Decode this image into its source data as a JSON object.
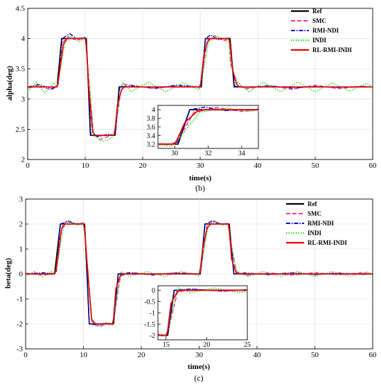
{
  "chart_data": [
    {
      "type": "line",
      "caption": "(b)",
      "xlabel": "time(s)",
      "ylabel": "alpha(deg)",
      "xlim": [
        0,
        60
      ],
      "ylim": [
        2,
        4.5
      ],
      "xticks": [
        "0",
        "10",
        "20",
        "30",
        "40",
        "50",
        "60"
      ],
      "yticks": [
        "2",
        "2.5",
        "3",
        "3.5",
        "4",
        "4.5"
      ],
      "grid": true,
      "legend_position": "top-right",
      "series": [
        {
          "name": "Ref",
          "color": "#000000",
          "dash": "solid",
          "x": [
            0,
            5.1,
            5.9,
            10.0,
            10.2,
            10.9,
            15.0,
            15.2,
            15.9,
            30.0,
            30.2,
            30.9,
            35.0,
            35.2,
            35.9,
            60
          ],
          "y": [
            3.2,
            3.2,
            4.0,
            4.0,
            4.0,
            2.4,
            2.4,
            2.4,
            3.2,
            3.2,
            3.2,
            4.0,
            4.0,
            4.0,
            3.2,
            3.2
          ]
        },
        {
          "name": "SMC",
          "color": "#ff3399",
          "dash": "dashed",
          "x": [
            0,
            2,
            4,
            5.0,
            5.3,
            6.2,
            7,
            8.5,
            10.0,
            10.3,
            11.4,
            12.5,
            14,
            15.0,
            15.3,
            16.4,
            18,
            22,
            26,
            29.8,
            30.2,
            31.2,
            32.5,
            34,
            35.0,
            35.3,
            36.4,
            38,
            42,
            46,
            50,
            54,
            58,
            60
          ],
          "y": [
            3.18,
            3.22,
            3.15,
            3.2,
            3.3,
            3.95,
            4.03,
            3.97,
            4.02,
            3.7,
            2.45,
            2.33,
            2.38,
            2.41,
            2.55,
            3.25,
            3.23,
            3.17,
            3.22,
            3.19,
            3.3,
            3.97,
            4.05,
            3.96,
            4.0,
            3.6,
            3.24,
            3.17,
            3.22,
            3.16,
            3.23,
            3.17,
            3.21,
            3.2
          ]
        },
        {
          "name": "RMI-NDI",
          "color": "#0000dd",
          "dash": "dashdot",
          "x": [
            0,
            2,
            4,
            5.0,
            5.3,
            6.0,
            7.3,
            8.5,
            10.0,
            10.3,
            11.0,
            12.5,
            14,
            15.0,
            15.3,
            16.0,
            18,
            22,
            26,
            29.8,
            30.2,
            30.9,
            31.8,
            33,
            35.0,
            35.3,
            36.0,
            38,
            42,
            46,
            50,
            54,
            58,
            60
          ],
          "y": [
            3.2,
            3.24,
            3.17,
            3.2,
            3.25,
            4.0,
            4.08,
            4.0,
            4.02,
            3.8,
            2.4,
            2.38,
            2.42,
            2.4,
            2.48,
            3.2,
            3.22,
            3.18,
            3.23,
            3.2,
            3.25,
            4.0,
            4.06,
            3.98,
            4.01,
            3.8,
            3.21,
            3.19,
            3.22,
            3.18,
            3.21,
            3.19,
            3.21,
            3.2
          ]
        },
        {
          "name": "INDI",
          "color": "#22dd22",
          "dash": "dotted",
          "x": [
            0,
            1.5,
            3,
            4.5,
            5.0,
            5.3,
            6.5,
            7.5,
            9,
            10.0,
            10.3,
            11.5,
            13,
            14.5,
            15.0,
            15.3,
            16.5,
            18,
            21,
            24,
            27,
            29.8,
            30.2,
            31.5,
            33,
            34.5,
            35.0,
            35.3,
            36.5,
            38.5,
            41,
            44,
            47,
            50,
            53,
            56,
            59,
            60
          ],
          "y": [
            3.12,
            3.28,
            3.1,
            3.27,
            3.2,
            3.28,
            3.93,
            4.04,
            3.95,
            4.02,
            3.7,
            2.4,
            2.3,
            2.35,
            2.4,
            2.6,
            3.28,
            3.12,
            3.28,
            3.12,
            3.27,
            3.15,
            3.3,
            3.94,
            4.04,
            3.96,
            4.0,
            3.55,
            3.28,
            3.12,
            3.28,
            3.12,
            3.28,
            3.12,
            3.27,
            3.13,
            3.26,
            3.2
          ]
        },
        {
          "name": "RL-RMI-INDI",
          "color": "#ee0000",
          "dash": "solid",
          "x": [
            0,
            5.1,
            5.4,
            6.2,
            6.8,
            10.0,
            10.2,
            10.6,
            11.3,
            11.8,
            15.0,
            15.2,
            15.6,
            16.3,
            16.8,
            30.0,
            30.2,
            30.6,
            31.3,
            31.8,
            35.0,
            35.2,
            35.6,
            36.3,
            36.8,
            60
          ],
          "y": [
            3.2,
            3.2,
            3.35,
            3.9,
            4.0,
            4.0,
            3.9,
            3.2,
            2.45,
            2.4,
            2.4,
            2.5,
            2.9,
            3.15,
            3.2,
            3.2,
            3.35,
            3.7,
            3.95,
            4.0,
            4.0,
            3.9,
            3.5,
            3.25,
            3.2,
            3.2
          ]
        }
      ],
      "inset": {
        "xlim": [
          29,
          35
        ],
        "ylim": [
          3.1,
          4.1
        ],
        "xticks": [
          "30",
          "32",
          "34"
        ],
        "yticks": [
          "3.2",
          "3.4",
          "3.6",
          "3.8",
          "4"
        ]
      }
    },
    {
      "type": "line",
      "caption": "(c)",
      "xlabel": "time(s)",
      "ylabel": "beta(deg)",
      "xlim": [
        0,
        60
      ],
      "ylim": [
        -3,
        3
      ],
      "xticks": [
        "0",
        "10",
        "20",
        "30",
        "40",
        "50",
        "60"
      ],
      "yticks": [
        "-3",
        "-2",
        "-1",
        "0",
        "1",
        "2",
        "3"
      ],
      "grid": true,
      "legend_position": "top-right",
      "series": [
        {
          "name": "Ref",
          "color": "#000000",
          "dash": "solid",
          "x": [
            0,
            5.0,
            6.0,
            10.0,
            10.2,
            11.0,
            15.0,
            15.2,
            16.0,
            30.0,
            30.2,
            31.0,
            35.0,
            35.2,
            36.0,
            60
          ],
          "y": [
            0,
            0,
            2.0,
            2.0,
            2.0,
            -2.0,
            -2.0,
            -2.0,
            0,
            0,
            0,
            2.0,
            2.0,
            2.0,
            0,
            0
          ]
        },
        {
          "name": "SMC",
          "color": "#ff3399",
          "dash": "dashed",
          "x": [
            0,
            3,
            5.0,
            5.3,
            6.3,
            7.2,
            8.5,
            10.0,
            10.3,
            11.4,
            12.5,
            14,
            15.0,
            15.3,
            16.4,
            18,
            22,
            26,
            30.0,
            30.3,
            31.3,
            32.2,
            34,
            35.0,
            35.3,
            36.4,
            38,
            42,
            46,
            50,
            54,
            58,
            60
          ],
          "y": [
            0.03,
            -0.05,
            0,
            0.1,
            1.9,
            2.15,
            2.0,
            2.05,
            1.5,
            -1.9,
            -2.1,
            -2.0,
            -2.05,
            -1.7,
            -0.1,
            0.06,
            -0.05,
            0.05,
            0,
            0.15,
            1.9,
            2.15,
            1.98,
            2.0,
            1.5,
            0.1,
            -0.06,
            0.05,
            -0.05,
            0.06,
            -0.04,
            0.05,
            0
          ]
        },
        {
          "name": "RMI-NDI",
          "color": "#0000dd",
          "dash": "dashdot",
          "x": [
            0,
            3,
            5.0,
            5.3,
            6.0,
            7.3,
            9,
            10.0,
            10.3,
            11.0,
            12.5,
            14,
            15.0,
            15.3,
            16.0,
            18,
            22,
            26,
            30.0,
            30.3,
            31.0,
            32.2,
            34,
            35.0,
            35.3,
            36.0,
            38,
            42,
            46,
            50,
            54,
            58,
            60
          ],
          "y": [
            0,
            0.05,
            0,
            0.08,
            2.0,
            2.1,
            2.0,
            2.02,
            1.7,
            -2.0,
            -2.05,
            -1.95,
            -2.02,
            -1.8,
            0,
            0.05,
            -0.03,
            0.04,
            0,
            0.08,
            2.0,
            2.1,
            2.0,
            2.02,
            1.7,
            0,
            0.04,
            -0.03,
            0.05,
            -0.03,
            0.04,
            -0.02,
            0
          ]
        },
        {
          "name": "INDI",
          "color": "#22dd22",
          "dash": "dotted",
          "x": [
            0,
            1.5,
            3,
            4.5,
            5.0,
            5.3,
            6.5,
            7.5,
            9,
            10.0,
            10.3,
            11.5,
            13,
            14.5,
            15.0,
            15.3,
            16.5,
            18,
            21,
            24,
            27,
            30.0,
            30.3,
            31.5,
            32.5,
            34,
            35.0,
            35.3,
            36.5,
            38.5,
            41,
            44,
            47,
            50,
            53,
            56,
            59,
            60
          ],
          "y": [
            -0.1,
            0.1,
            -0.1,
            0.1,
            0,
            0.15,
            1.85,
            2.15,
            1.95,
            2.05,
            1.4,
            -1.85,
            -2.12,
            -1.95,
            -2.05,
            -1.6,
            0.1,
            -0.1,
            0.1,
            -0.1,
            0.1,
            -0.08,
            0.2,
            1.85,
            2.15,
            1.95,
            2.0,
            1.4,
            0.1,
            -0.1,
            0.1,
            -0.1,
            0.1,
            -0.1,
            0.1,
            -0.1,
            0.08,
            0
          ]
        },
        {
          "name": "RL-RMI-INDI",
          "color": "#ee0000",
          "dash": "solid",
          "x": [
            0,
            5.0,
            5.3,
            6.2,
            6.8,
            10.0,
            10.2,
            10.6,
            11.4,
            12.0,
            15.0,
            15.2,
            15.6,
            16.4,
            17.0,
            30.0,
            30.2,
            30.6,
            31.4,
            32.0,
            35.0,
            35.2,
            35.6,
            36.4,
            37.0,
            60
          ],
          "y": [
            0,
            0,
            0.2,
            1.8,
            2.0,
            2.0,
            1.8,
            0.5,
            -1.8,
            -2.0,
            -2.0,
            -1.8,
            -0.6,
            -0.05,
            0,
            0,
            0.2,
            1.0,
            1.85,
            2.0,
            2.0,
            1.8,
            0.6,
            0.05,
            0,
            0
          ]
        }
      ],
      "inset": {
        "xlim": [
          14,
          25
        ],
        "ylim": [
          -2.2,
          0.2
        ],
        "xticks": [
          "15",
          "20",
          "25"
        ],
        "yticks": [
          "-2",
          "-1.5",
          "-1",
          "-0.5",
          "0"
        ]
      }
    }
  ]
}
